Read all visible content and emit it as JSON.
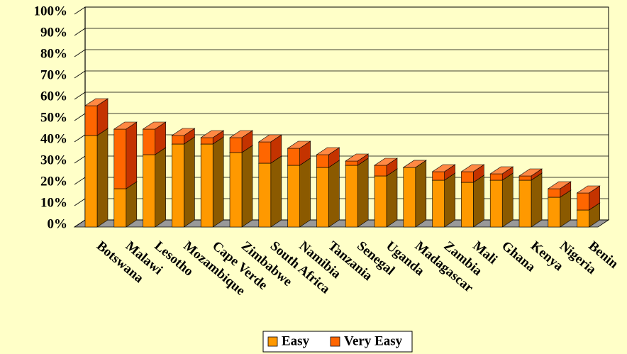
{
  "chart_data": {
    "type": "bar3d_stacked",
    "categories": [
      "Botswana",
      "Malawi",
      "Lesotho",
      "Mozambique",
      "Cape Verde",
      "Zimbabwe",
      "South Africa",
      "Namibia",
      "Tanzania",
      "Senegal",
      "Uganda",
      "Madagascar",
      "Zambia",
      "Mali",
      "Ghana",
      "Kenya",
      "Nigeria",
      "Benin"
    ],
    "series": [
      {
        "name": "Easy",
        "color": "#FF9900",
        "values": [
          43,
          18,
          34,
          39,
          39,
          35,
          30,
          29,
          28,
          29,
          24,
          28,
          22,
          21,
          22,
          22,
          14,
          8
        ]
      },
      {
        "name": "Very Easy",
        "color": "#FF6600",
        "values": [
          14,
          28,
          12,
          4,
          3,
          7,
          10,
          8,
          6,
          2,
          5,
          0,
          4,
          5,
          3,
          2,
          4,
          8
        ]
      }
    ],
    "ylim": [
      0,
      100
    ],
    "yticks": [
      {
        "value": 0,
        "label": "0%"
      },
      {
        "value": 10,
        "label": "10%"
      },
      {
        "value": 20,
        "label": "20%"
      },
      {
        "value": 30,
        "label": "30%"
      },
      {
        "value": 40,
        "label": "40%"
      },
      {
        "value": 50,
        "label": "50%"
      },
      {
        "value": 60,
        "label": "60%"
      },
      {
        "value": 70,
        "label": "70%"
      },
      {
        "value": 80,
        "label": "80%"
      },
      {
        "value": 90,
        "label": "90%"
      },
      {
        "value": 100,
        "label": "100%"
      }
    ],
    "grid": true,
    "legend": "bottom"
  }
}
